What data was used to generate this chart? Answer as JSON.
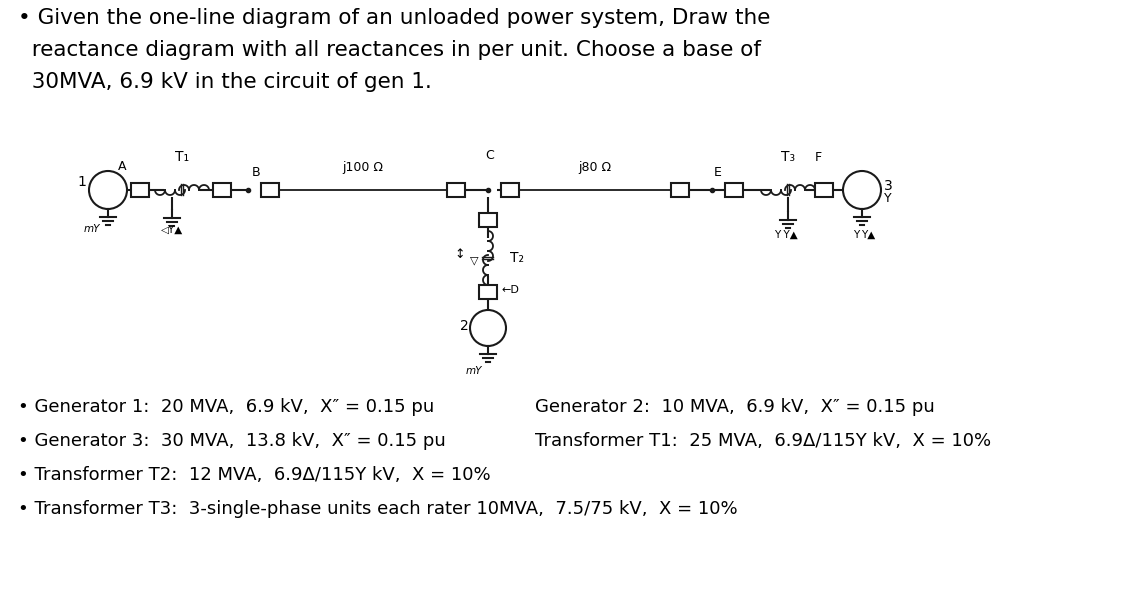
{
  "title_line1": "• Given the one-line diagram of an unloaded power system, Draw the",
  "title_line2": "  reactance diagram with all reactances in per unit. Choose a base of",
  "title_line3": "  30MVA, 6.9 kV in the circuit of gen 1.",
  "bullet1a": "Generator 1:  20 MVA,  6.9 kV,  X″ = 0.15 pu",
  "bullet1b": "Generator 2:  10 MVA,  6.9 kV,  X″ = 0.15 pu",
  "bullet2a": "Generator 3:  30 MVA,  13.8 kV,  X″ = 0.15 pu",
  "bullet2b": "Transformer T1:  25 MVA,  6.9Δ/115Y kV,  X = 10%",
  "bullet3a": "Transformer T2:  12 MVA,  6.9Δ/115Y kV,  X = 10%",
  "bullet4a": "Transformer T3:  3-single-phase units each rater 10MVA,  7.5/75 kV,  X = 10%",
  "line1_label": "j100 Ω",
  "line2_label": "j80 Ω",
  "background": "#ffffff",
  "diagram_color": "#1a1a1a",
  "font_size_title": 15.5,
  "font_size_diagram": 9,
  "font_size_body": 13
}
